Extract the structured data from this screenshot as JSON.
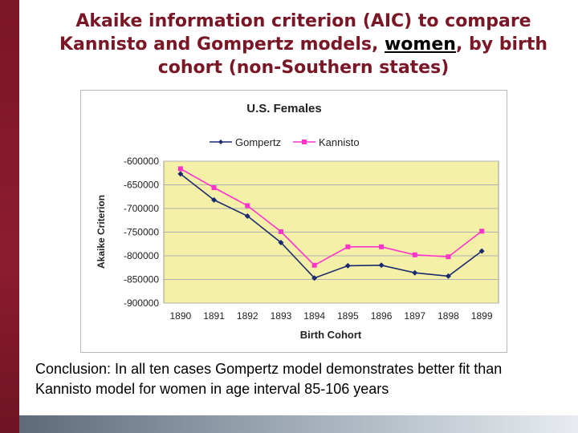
{
  "slide": {
    "title_part1": "Akaike information criterion (AIC) to compare Kannisto and Gompertz models, ",
    "title_underlined": "women",
    "title_part2": ", by birth cohort (non-Southern states)",
    "conclusion": "Conclusion: In all ten cases Gompertz model demonstrates better fit than Kannisto model for women in age interval 85-106 years",
    "colors": {
      "title": "#7a1626",
      "plot_background": "#f5f0a8",
      "gompertz": "#1a2a70",
      "kannisto": "#ff33cc"
    }
  },
  "chart_data": {
    "type": "line",
    "title": "U.S. Females",
    "xlabel": "Birth Cohort",
    "ylabel": "Akaike Criterion",
    "categories": [
      "1890",
      "1891",
      "1892",
      "1893",
      "1894",
      "1895",
      "1896",
      "1897",
      "1898",
      "1899"
    ],
    "ylim": [
      -900000,
      -600000
    ],
    "yticks": [
      -600000,
      -650000,
      -700000,
      -750000,
      -800000,
      -850000,
      -900000
    ],
    "ytick_labels": [
      "-600000",
      "-650000",
      "-700000",
      "-750000",
      "-800000",
      "-850000",
      "-900000"
    ],
    "grid": true,
    "legend_position": "top",
    "series": [
      {
        "name": "Gompertz",
        "marker": "diamond",
        "values": [
          -627000,
          -682000,
          -716000,
          -772000,
          -847000,
          -821000,
          -820000,
          -836000,
          -843000,
          -790000
        ]
      },
      {
        "name": "Kannisto",
        "marker": "square",
        "values": [
          -616000,
          -656000,
          -694000,
          -749000,
          -820000,
          -781000,
          -781000,
          -798000,
          -802000,
          -748000
        ]
      }
    ]
  }
}
